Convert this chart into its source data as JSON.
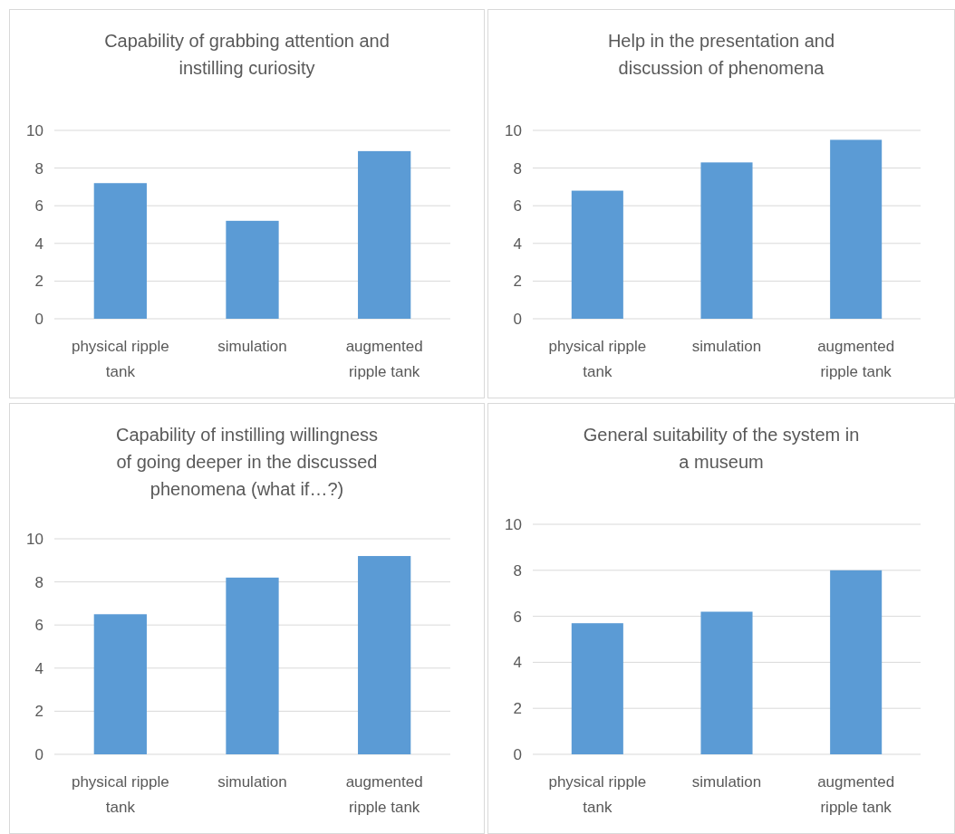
{
  "chart_data": [
    {
      "type": "bar",
      "title": "Capability of grabbing attention and instilling curiosity",
      "categories": [
        "physical ripple tank",
        "simulation",
        "augmented ripple tank"
      ],
      "values": [
        7.2,
        5.2,
        8.9
      ],
      "color": "#5b9bd5",
      "ylim": [
        0,
        10
      ],
      "yticks": [
        0,
        2,
        4,
        6,
        8,
        10
      ],
      "grid": "y"
    },
    {
      "type": "bar",
      "title": "Help in the presentation and discussion of phenomena",
      "categories": [
        "physical ripple tank",
        "simulation",
        "augmented ripple tank"
      ],
      "values": [
        6.8,
        8.3,
        9.5
      ],
      "color": "#5b9bd5",
      "ylim": [
        0,
        10
      ],
      "yticks": [
        0,
        2,
        4,
        6,
        8,
        10
      ],
      "grid": "y"
    },
    {
      "type": "bar",
      "title": "Capability of instilling willingness of going deeper in the discussed phenomena (what if…?)",
      "categories": [
        "physical ripple tank",
        "simulation",
        "augmented ripple tank"
      ],
      "values": [
        6.5,
        8.2,
        9.2
      ],
      "color": "#5b9bd5",
      "ylim": [
        0,
        10
      ],
      "yticks": [
        0,
        2,
        4,
        6,
        8,
        10
      ],
      "grid": "y"
    },
    {
      "type": "bar",
      "title": "General suitability of the system in a museum",
      "categories": [
        "physical ripple tank",
        "simulation",
        "augmented ripple tank"
      ],
      "values": [
        5.7,
        6.2,
        8.0
      ],
      "color": "#5b9bd5",
      "ylim": [
        0,
        10
      ],
      "yticks": [
        0,
        2,
        4,
        6,
        8,
        10
      ],
      "grid": "y"
    }
  ]
}
